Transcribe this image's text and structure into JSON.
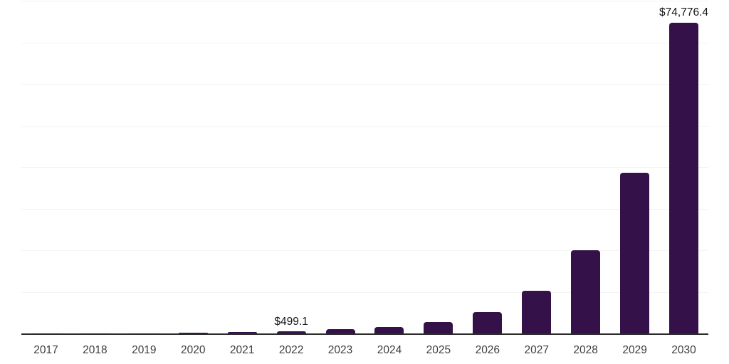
{
  "chart_data": {
    "type": "bar",
    "title": "",
    "xlabel": "",
    "ylabel": "",
    "categories": [
      "2017",
      "2018",
      "2019",
      "2020",
      "2021",
      "2022",
      "2023",
      "2024",
      "2025",
      "2026",
      "2027",
      "2028",
      "2029",
      "2030"
    ],
    "values": [
      20,
      40,
      75,
      140,
      265,
      499.1,
      950,
      1500,
      2700,
      5200,
      10200,
      20000,
      38600,
      74776.4
    ],
    "annotations": [
      {
        "category": "2022",
        "text": "$499.1"
      },
      {
        "category": "2030",
        "text": "$74,776.4"
      }
    ],
    "ylim": [
      0,
      80000
    ],
    "gridline_interval": 10000,
    "grid": true,
    "legend": false,
    "x_tick_labels_visible": true,
    "y_tick_labels_visible": false
  },
  "colors": {
    "bar": "#351149",
    "axis_line": "#2b2b2b",
    "gridline": "#f3f3f3",
    "value_label": "#141414",
    "year_label": "#3d3d3d",
    "background": "#ffffff"
  }
}
